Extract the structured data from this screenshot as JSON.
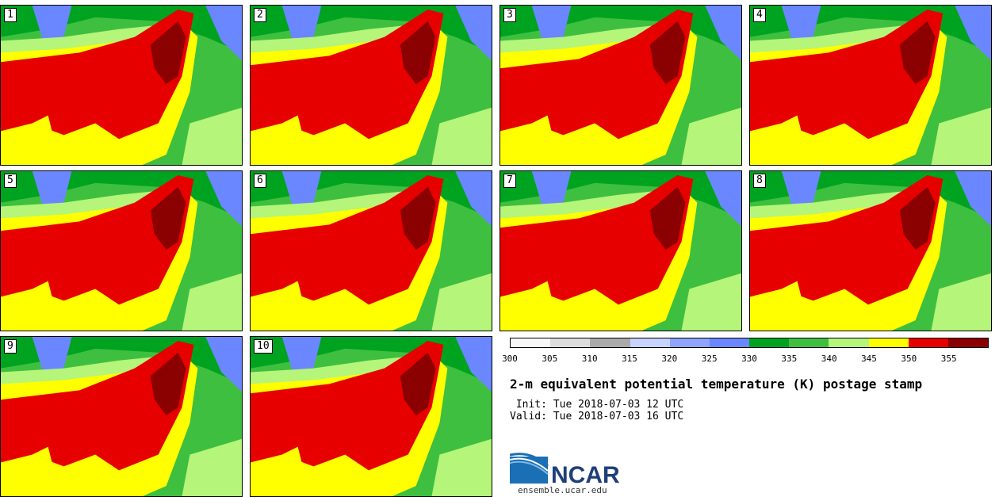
{
  "panels": [
    {
      "label": "1"
    },
    {
      "label": "2"
    },
    {
      "label": "3"
    },
    {
      "label": "4"
    },
    {
      "label": "5"
    },
    {
      "label": "6"
    },
    {
      "label": "7"
    },
    {
      "label": "8"
    },
    {
      "label": "9"
    },
    {
      "label": "10"
    }
  ],
  "colorbar": {
    "colors": [
      "#f7f7f7",
      "#dddddd",
      "#aaaaaa",
      "#c6d4ff",
      "#8ea4ff",
      "#6b87ff",
      "#00a31f",
      "#3fbf3f",
      "#b4f57a",
      "#ffff00",
      "#e60000",
      "#8b0000"
    ],
    "ticks": [
      "300",
      "305",
      "310",
      "315",
      "320",
      "325",
      "330",
      "335",
      "340",
      "345",
      "350",
      "355"
    ]
  },
  "title": "2-m equivalent potential temperature (K) postage stamp",
  "init": " Init: Tue 2018-07-03 12 UTC",
  "valid": "Valid: Tue 2018-07-03 16 UTC",
  "logo_text": "NCAR",
  "url": "ensemble.ucar.edu"
}
